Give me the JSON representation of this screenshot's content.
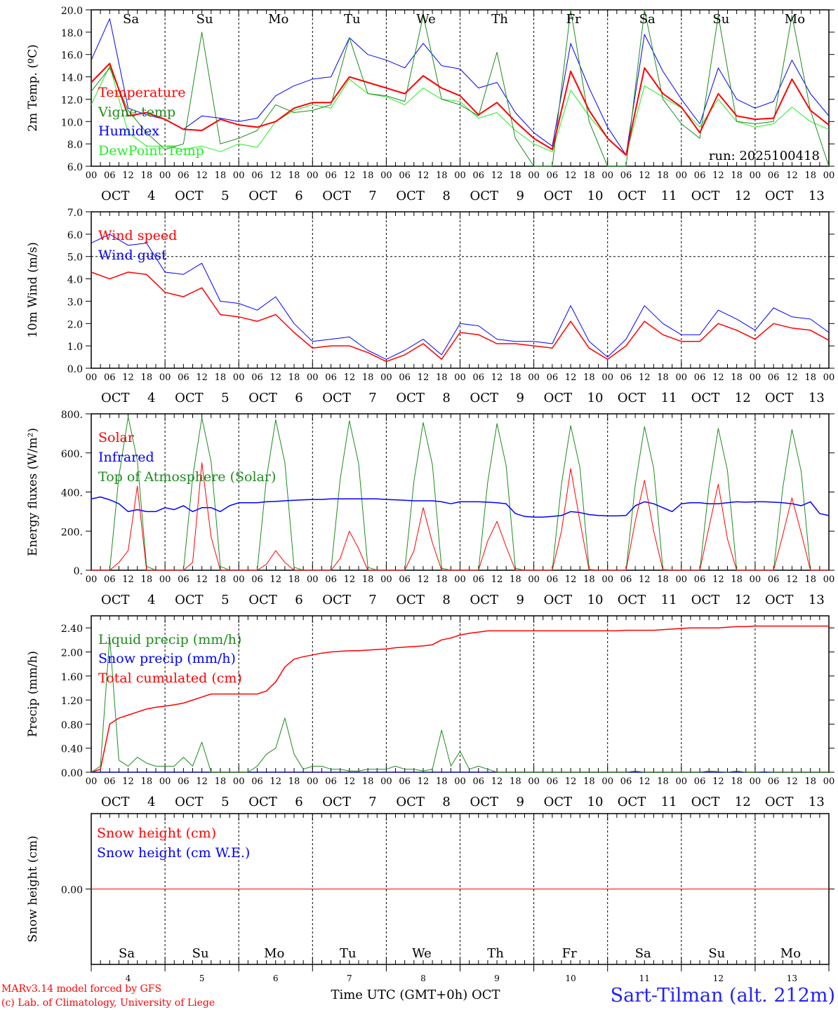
{
  "footer": {
    "model": "MARv3.14 model forced by GFS",
    "lab": "(c) Lab. of Climatology, University of Liege",
    "xlabel": "Time UTC (GMT+0h) OCT",
    "station": "Sart-Tilman (alt. 212m)"
  },
  "run_label": "run: 2025100418",
  "days": {
    "names": [
      "Sa",
      "Su",
      "Mo",
      "Tu",
      "We",
      "Th",
      "Fr",
      "Sa",
      "Su",
      "Mo"
    ],
    "weekend": [
      true,
      true,
      false,
      false,
      false,
      false,
      false,
      true,
      true,
      false
    ],
    "numbers": [
      "4",
      "5",
      "6",
      "7",
      "8",
      "9",
      "10",
      "11",
      "12",
      "13"
    ],
    "month": "OCT",
    "hours": [
      "00",
      "06",
      "12",
      "18"
    ],
    "weekend_color": "#ff0000"
  },
  "chart_data": [
    {
      "type": "line",
      "id": "temperature",
      "ylabel": "2m Temp. (ºC)",
      "ylim": [
        6,
        20
      ],
      "yticks": [
        "20.0",
        "18.0",
        "16.0",
        "14.0",
        "12.0",
        "10.0",
        "8.0",
        "6.0"
      ],
      "ytick_values": [
        20,
        18,
        16,
        14,
        12,
        10,
        8,
        6
      ],
      "step_hours": 6,
      "series": [
        {
          "name": "Temperature",
          "color": "#ff0000",
          "width": 2,
          "values": [
            13.5,
            15.2,
            10.5,
            10.8,
            10.2,
            9.3,
            9.2,
            10.2,
            9.7,
            9.5,
            10.0,
            11.2,
            11.7,
            11.7,
            14.0,
            13.5,
            13.0,
            12.5,
            14.1,
            13.0,
            12.3,
            10.6,
            11.7,
            10.0,
            8.5,
            7.5,
            14.5,
            11.0,
            8.5,
            7.0,
            14.8,
            12.5,
            11.3,
            9.0,
            12.5,
            10.5,
            10.2,
            10.3,
            13.8,
            11.0,
            9.7
          ]
        },
        {
          "name": "Vigne temp",
          "color": "#1c8c1c",
          "width": 1,
          "values": [
            12.7,
            14.8,
            11.0,
            9.0,
            7.5,
            8.0,
            18.0,
            8.0,
            8.5,
            9.2,
            11.5,
            10.8,
            11.0,
            11.5,
            17.5,
            12.5,
            12.3,
            11.8,
            19.5,
            12.0,
            11.5,
            10.5,
            16.2,
            8.5,
            5.0,
            6.0,
            20.0,
            10.0,
            5.5,
            5.5,
            20.0,
            12.0,
            9.8,
            8.5,
            19.5,
            10.0,
            9.8,
            10.0,
            19.5,
            11.0,
            6.0
          ]
        },
        {
          "name": "Humidex",
          "color": "#0000ff",
          "width": 1,
          "values": [
            15.5,
            19.2,
            11.2,
            10.6,
            10.2,
            9.3,
            10.5,
            10.3,
            10.0,
            10.3,
            12.3,
            13.2,
            13.8,
            14.0,
            17.5,
            16.0,
            15.5,
            14.8,
            17.0,
            15.0,
            14.7,
            13.0,
            13.5,
            10.8,
            9.0,
            7.8,
            17.0,
            13.0,
            9.5,
            7.0,
            17.8,
            14.5,
            12.0,
            9.8,
            14.8,
            12.0,
            11.2,
            11.8,
            15.5,
            12.5,
            10.5
          ]
        },
        {
          "name": "DewPoint Temp",
          "color": "#22ee22",
          "width": 1,
          "values": [
            11.5,
            15.0,
            9.0,
            7.8,
            7.8,
            7.5,
            7.8,
            7.3,
            8.0,
            7.7,
            10.0,
            11.0,
            11.5,
            11.2,
            13.8,
            12.5,
            12.2,
            11.5,
            13.0,
            12.0,
            11.8,
            10.3,
            10.8,
            9.2,
            8.0,
            7.3,
            12.8,
            10.5,
            8.5,
            7.0,
            13.2,
            12.2,
            11.2,
            9.5,
            12.0,
            10.0,
            9.5,
            9.8,
            11.3,
            10.0,
            9.3
          ]
        }
      ]
    },
    {
      "type": "line",
      "id": "wind",
      "ylabel": "10m Wind (m/s)",
      "ylim": [
        0,
        7
      ],
      "yticks": [
        "7.0",
        "6.0",
        "5.0",
        "4.0",
        "3.0",
        "2.0",
        "1.0",
        "0.0"
      ],
      "ytick_values": [
        7,
        6,
        5,
        4,
        3,
        2,
        1,
        0
      ],
      "hline": 5.0,
      "step_hours": 6,
      "series": [
        {
          "name": "Wind speed",
          "color": "#ff0000",
          "width": 1.5,
          "values": [
            4.3,
            4.0,
            4.3,
            4.2,
            3.4,
            3.2,
            3.6,
            2.4,
            2.3,
            2.1,
            2.4,
            1.6,
            0.9,
            1.0,
            1.0,
            0.7,
            0.3,
            0.6,
            1.1,
            0.4,
            1.6,
            1.5,
            1.1,
            1.1,
            1.0,
            0.9,
            2.1,
            0.9,
            0.4,
            1.0,
            2.1,
            1.5,
            1.2,
            1.2,
            2.0,
            1.7,
            1.3,
            2.0,
            1.8,
            1.7,
            1.25
          ]
        },
        {
          "name": "Wind gust",
          "color": "#0000ff",
          "width": 1,
          "values": [
            5.6,
            6.0,
            5.5,
            5.6,
            4.3,
            4.2,
            4.7,
            3.0,
            2.9,
            2.6,
            3.2,
            2.0,
            1.2,
            1.3,
            1.4,
            0.8,
            0.4,
            0.8,
            1.3,
            0.6,
            2.0,
            1.9,
            1.3,
            1.2,
            1.2,
            1.1,
            2.8,
            1.2,
            0.5,
            1.3,
            2.8,
            2.0,
            1.5,
            1.5,
            2.6,
            2.2,
            1.7,
            2.7,
            2.3,
            2.2,
            1.6
          ]
        }
      ]
    },
    {
      "type": "line",
      "id": "energy",
      "ylabel": "Energy fluxes (W/m²)",
      "ylim": [
        0,
        800
      ],
      "yticks": [
        "800.",
        "600.",
        "400.",
        "200.",
        "0."
      ],
      "ytick_values": [
        800,
        600,
        400,
        200,
        0
      ],
      "step_hours": 3,
      "series": [
        {
          "name": "Solar",
          "color": "#ff0000",
          "width": 1,
          "values": [
            0,
            0,
            0,
            40,
            100,
            430,
            0,
            0,
            0,
            0,
            0,
            40,
            550,
            170,
            0,
            0,
            0,
            0,
            0,
            30,
            100,
            40,
            0,
            0,
            0,
            0,
            0,
            60,
            200,
            110,
            0,
            0,
            0,
            0,
            0,
            100,
            320,
            140,
            0,
            0,
            0,
            0,
            0,
            150,
            250,
            120,
            0,
            0,
            0,
            0,
            0,
            200,
            520,
            250,
            0,
            0,
            0,
            0,
            0,
            250,
            460,
            200,
            0,
            0,
            0,
            0,
            0,
            220,
            440,
            160,
            0,
            0,
            0,
            0,
            0,
            180,
            370,
            190,
            0,
            0,
            0
          ]
        },
        {
          "name": "Infrared",
          "color": "#0000ff",
          "width": 1.5,
          "values": [
            365,
            375,
            360,
            340,
            300,
            310,
            300,
            300,
            320,
            310,
            330,
            300,
            320,
            320,
            300,
            330,
            345,
            345,
            345,
            350,
            352,
            355,
            358,
            360,
            362,
            362,
            365,
            365,
            365,
            365,
            365,
            365,
            362,
            360,
            358,
            355,
            355,
            355,
            350,
            340,
            350,
            350,
            350,
            348,
            345,
            340,
            290,
            275,
            272,
            272,
            275,
            280,
            300,
            295,
            285,
            280,
            278,
            278,
            280,
            330,
            350,
            340,
            320,
            300,
            340,
            345,
            345,
            340,
            340,
            345,
            350,
            348,
            350,
            350,
            348,
            345,
            340,
            330,
            350,
            290,
            280
          ]
        },
        {
          "name": "Top of Atmosphere (Solar)",
          "color": "#1c8c1c",
          "width": 1,
          "values": [
            0,
            0,
            0,
            480,
            785,
            560,
            20,
            0,
            0,
            0,
            0,
            475,
            780,
            555,
            20,
            0,
            0,
            0,
            0,
            470,
            770,
            550,
            15,
            0,
            0,
            0,
            0,
            465,
            765,
            545,
            15,
            0,
            0,
            0,
            0,
            455,
            755,
            540,
            10,
            0,
            0,
            0,
            0,
            450,
            750,
            535,
            10,
            0,
            0,
            0,
            0,
            440,
            740,
            525,
            5,
            0,
            0,
            0,
            0,
            435,
            735,
            520,
            5,
            0,
            0,
            0,
            0,
            425,
            725,
            510,
            0,
            0,
            0,
            0,
            0,
            420,
            720,
            505,
            0,
            0,
            0
          ]
        }
      ]
    },
    {
      "type": "line",
      "id": "precip",
      "ylabel": "Precip (mm/h)",
      "ylim": [
        0,
        2.6
      ],
      "yticks": [
        "2.40",
        "2.00",
        "1.60",
        "1.20",
        "0.80",
        "0.40",
        "0.00"
      ],
      "ytick_values": [
        2.4,
        2.0,
        1.6,
        1.2,
        0.8,
        0.4,
        0
      ],
      "step_hours": 3,
      "series": [
        {
          "name": "Liquid precip (mm/h)",
          "color": "#1c8c1c",
          "width": 1,
          "values": [
            0,
            0.1,
            2.25,
            0.2,
            0.1,
            0.25,
            0.15,
            0.1,
            0.1,
            0.1,
            0.25,
            0.1,
            0.5,
            0,
            0,
            0,
            0,
            0,
            0.1,
            0.3,
            0.4,
            0.9,
            0.3,
            0.05,
            0.1,
            0.1,
            0.05,
            0.05,
            0.02,
            0.02,
            0.05,
            0.05,
            0.05,
            0.1,
            0.05,
            0.05,
            0.02,
            0.05,
            0.7,
            0.1,
            0.35,
            0.05,
            0.1,
            0.05,
            0,
            0,
            0,
            0,
            0,
            0,
            0,
            0,
            0,
            0,
            0,
            0,
            0,
            0,
            0,
            0.02,
            0,
            0,
            0,
            0,
            0,
            0,
            0,
            0.02,
            0.01,
            0,
            0.02,
            0,
            0,
            0.01,
            0,
            0,
            0,
            0,
            0,
            0,
            0
          ]
        },
        {
          "name": "Snow precip (mm/h)",
          "color": "#0000ff",
          "width": 1,
          "values": [
            0,
            0,
            0,
            0,
            0,
            0,
            0,
            0,
            0,
            0,
            0,
            0,
            0,
            0,
            0,
            0,
            0,
            0,
            0,
            0,
            0,
            0,
            0,
            0,
            0,
            0,
            0,
            0,
            0,
            0,
            0,
            0,
            0,
            0,
            0,
            0,
            0,
            0,
            0,
            0,
            0,
            0,
            0,
            0,
            0,
            0,
            0,
            0,
            0,
            0,
            0,
            0,
            0,
            0,
            0,
            0,
            0,
            0,
            0,
            0,
            0,
            0,
            0,
            0,
            0,
            0,
            0,
            0,
            0,
            0,
            0,
            0,
            0,
            0,
            0,
            0,
            0,
            0,
            0,
            0,
            0
          ]
        },
        {
          "name": "Total cumulated (cm)",
          "color": "#ff0000",
          "width": 1.5,
          "values": [
            0,
            0.05,
            0.8,
            0.9,
            0.95,
            1.0,
            1.05,
            1.08,
            1.1,
            1.12,
            1.15,
            1.2,
            1.25,
            1.3,
            1.3,
            1.3,
            1.3,
            1.3,
            1.3,
            1.35,
            1.5,
            1.75,
            1.88,
            1.92,
            1.95,
            1.98,
            2.0,
            2.01,
            2.02,
            2.02,
            2.03,
            2.04,
            2.05,
            2.07,
            2.08,
            2.09,
            2.1,
            2.12,
            2.2,
            2.23,
            2.28,
            2.31,
            2.33,
            2.35,
            2.35,
            2.35,
            2.35,
            2.35,
            2.35,
            2.35,
            2.35,
            2.35,
            2.35,
            2.35,
            2.35,
            2.35,
            2.35,
            2.35,
            2.36,
            2.36,
            2.36,
            2.36,
            2.37,
            2.38,
            2.39,
            2.4,
            2.4,
            2.4,
            2.4,
            2.41,
            2.42,
            2.42,
            2.43,
            2.43,
            2.43,
            2.43,
            2.43,
            2.43,
            2.43,
            2.43,
            2.43
          ]
        }
      ]
    },
    {
      "type": "line",
      "id": "snow",
      "ylabel": "Snow height (cm)",
      "ylim": [
        -1,
        1
      ],
      "yticks": [
        "0.00"
      ],
      "ytick_values": [
        0
      ],
      "step_hours": 24,
      "series": [
        {
          "name": "Snow height (cm)",
          "color": "#ff0000",
          "width": 1,
          "values": [
            0,
            0,
            0,
            0,
            0,
            0,
            0,
            0,
            0,
            0,
            0
          ]
        },
        {
          "name": "Snow height (cm W.E.)",
          "color": "#0000ff",
          "width": 1,
          "values": [
            0,
            0,
            0,
            0,
            0,
            0,
            0,
            0,
            0,
            0,
            0
          ]
        }
      ]
    }
  ]
}
